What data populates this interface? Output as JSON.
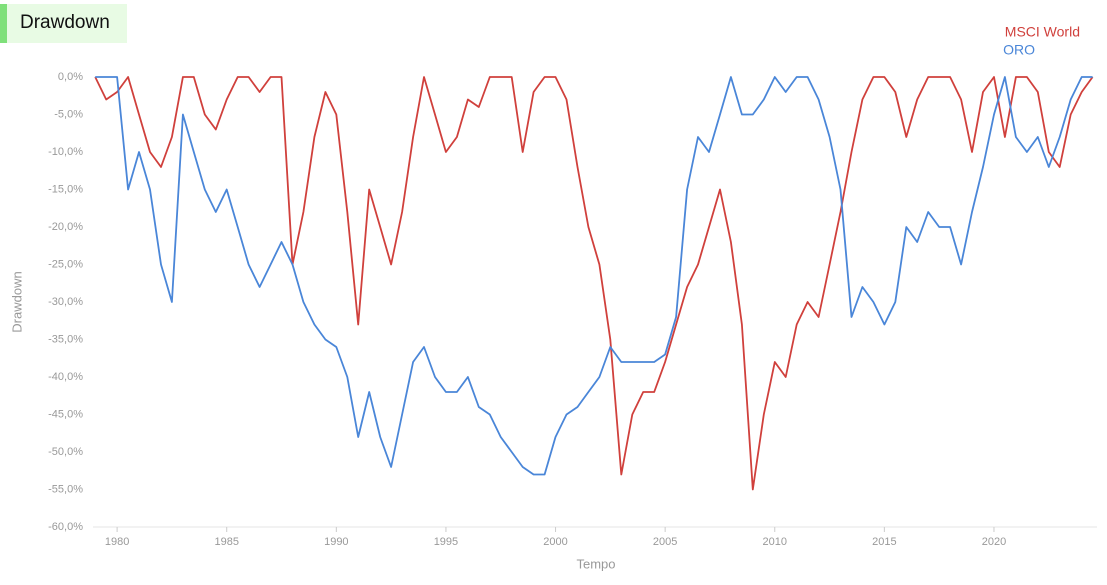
{
  "chart_data": {
    "type": "line",
    "title": "Drawdown",
    "x_label": "Tempo",
    "y_label": "Drawdown",
    "legend": "top-right",
    "grid": false,
    "xlim": [
      1978.9,
      2024.7
    ],
    "ylim": [
      -60,
      0
    ],
    "xticks": [
      1980,
      1985,
      1990,
      1995,
      2000,
      2005,
      2010,
      2015,
      2020
    ],
    "yticks": [
      {
        "value": 0,
        "label": "0,0%"
      },
      {
        "value": -5,
        "label": "-5,0%"
      },
      {
        "value": -10,
        "label": "-10,0%"
      },
      {
        "value": -15,
        "label": "-15,0%"
      },
      {
        "value": -20,
        "label": "-20,0%"
      },
      {
        "value": -25,
        "label": "-25,0%"
      },
      {
        "value": -30,
        "label": "-30,0%"
      },
      {
        "value": -35,
        "label": "-35,0%"
      },
      {
        "value": -40,
        "label": "-40,0%"
      },
      {
        "value": -45,
        "label": "-45,0%"
      },
      {
        "value": -50,
        "label": "-50,0%"
      },
      {
        "value": -55,
        "label": "-55,0%"
      },
      {
        "value": -60,
        "label": "-60,0%"
      }
    ],
    "x": [
      1979,
      1979.5,
      1980,
      1980.5,
      1981,
      1981.5,
      1982,
      1982.5,
      1983,
      1983.5,
      1984,
      1984.5,
      1985,
      1985.5,
      1986,
      1986.5,
      1987,
      1987.5,
      1988,
      1988.5,
      1989,
      1989.5,
      1990,
      1990.5,
      1991,
      1991.5,
      1992,
      1992.5,
      1993,
      1993.5,
      1994,
      1994.5,
      1995,
      1995.5,
      1996,
      1996.5,
      1997,
      1997.5,
      1998,
      1998.5,
      1999,
      1999.5,
      2000,
      2000.5,
      2001,
      2001.5,
      2002,
      2002.5,
      2003,
      2003.5,
      2004,
      2004.5,
      2005,
      2005.5,
      2006,
      2006.5,
      2007,
      2007.5,
      2008,
      2008.5,
      2009,
      2009.5,
      2010,
      2010.5,
      2011,
      2011.5,
      2012,
      2012.5,
      2013,
      2013.5,
      2014,
      2014.5,
      2015,
      2015.5,
      2016,
      2016.5,
      2017,
      2017.5,
      2018,
      2018.5,
      2019,
      2019.5,
      2020,
      2020.5,
      2021,
      2021.5,
      2022,
      2022.5,
      2023,
      2023.5,
      2024,
      2024.5
    ],
    "series": [
      {
        "name": "MSCI World",
        "color": "#d0403c",
        "values": [
          0,
          -3,
          -2,
          0,
          -5,
          -10,
          -12,
          -8,
          0,
          0,
          -5,
          -7,
          -3,
          0,
          0,
          -2,
          0,
          0,
          -25,
          -18,
          -8,
          -2,
          -5,
          -18,
          -33,
          -15,
          -20,
          -25,
          -18,
          -8,
          0,
          -5,
          -10,
          -8,
          -3,
          -4,
          0,
          0,
          0,
          -10,
          -2,
          0,
          0,
          -3,
          -12,
          -20,
          -25,
          -35,
          -53,
          -45,
          -42,
          -42,
          -38,
          -33,
          -28,
          -25,
          -20,
          -15,
          -22,
          -33,
          -55,
          -45,
          -38,
          -40,
          -33,
          -30,
          -32,
          -25,
          -18,
          -10,
          -3,
          0,
          0,
          -2,
          -8,
          -3,
          0,
          0,
          0,
          -3,
          -10,
          -2,
          0,
          -8,
          0,
          0,
          -2,
          -10,
          -12,
          -5,
          -2,
          0
        ]
      },
      {
        "name": "ORO",
        "color": "#4a86d8",
        "values": [
          0,
          0,
          0,
          -15,
          -10,
          -15,
          -25,
          -30,
          -5,
          -10,
          -15,
          -18,
          -15,
          -20,
          -25,
          -28,
          -25,
          -22,
          -25,
          -30,
          -33,
          -35,
          -36,
          -40,
          -48,
          -42,
          -48,
          -52,
          -45,
          -38,
          -36,
          -40,
          -42,
          -42,
          -40,
          -44,
          -45,
          -48,
          -50,
          -52,
          -53,
          -53,
          -48,
          -45,
          -44,
          -42,
          -40,
          -36,
          -38,
          -38,
          -38,
          -38,
          -37,
          -32,
          -15,
          -8,
          -10,
          -5,
          0,
          -5,
          -5,
          -3,
          0,
          -2,
          0,
          0,
          -3,
          -8,
          -15,
          -32,
          -28,
          -30,
          -33,
          -30,
          -20,
          -22,
          -18,
          -20,
          -20,
          -25,
          -18,
          -12,
          -5,
          0,
          -8,
          -10,
          -8,
          -12,
          -8,
          -3,
          0,
          0
        ]
      }
    ]
  }
}
